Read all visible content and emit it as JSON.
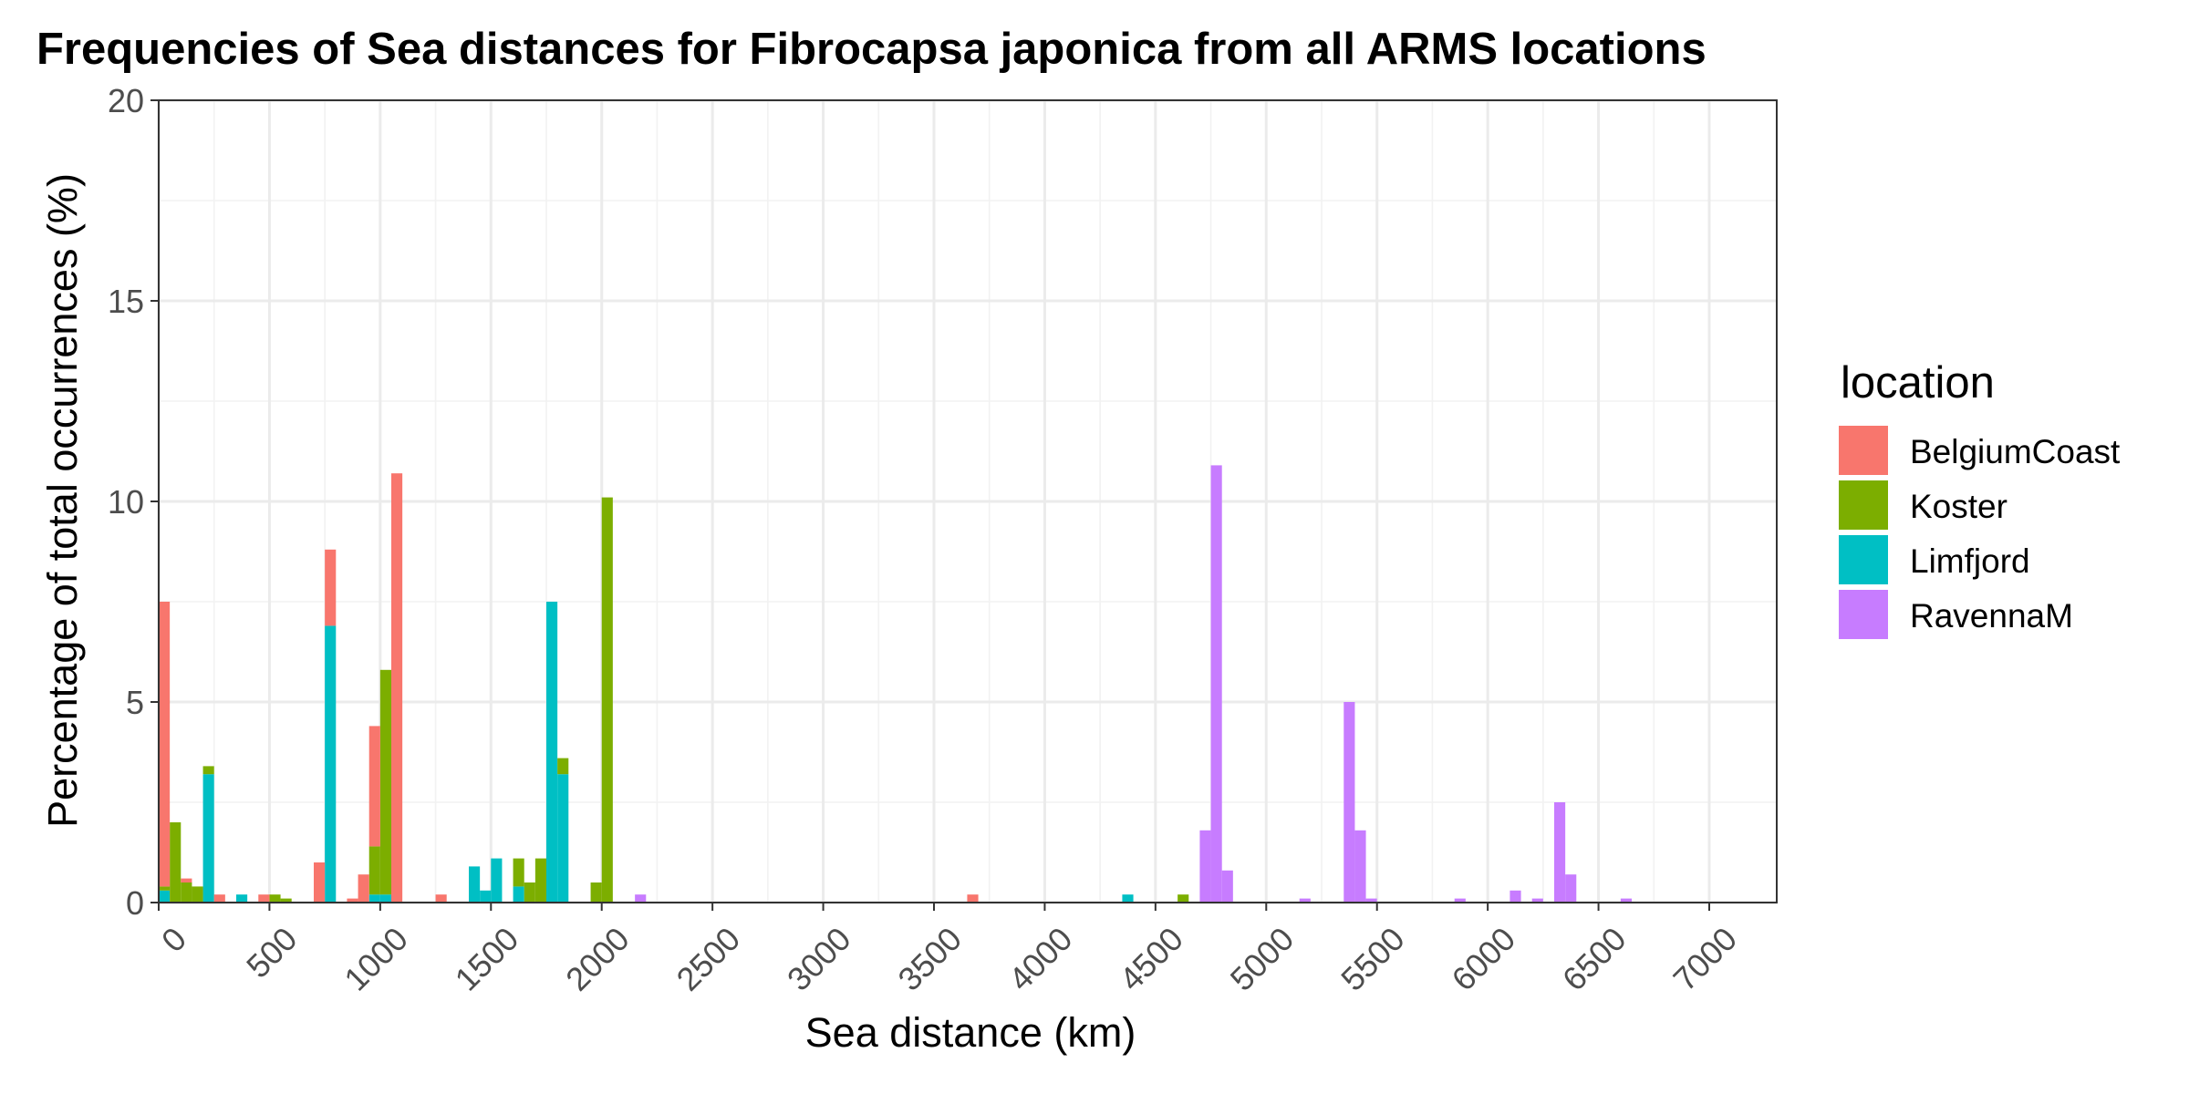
{
  "chart_data": {
    "type": "bar",
    "stacked": true,
    "title": "Frequencies of Sea distances for Fibrocapsa japonica from all ARMS locations",
    "xlabel": "Sea distance (km)",
    "ylabel": "Percentage of total occurrences (%)",
    "xlim": [
      0,
      7200
    ],
    "ylim": [
      0,
      20
    ],
    "bin_width": 50,
    "x_ticks": [
      0,
      500,
      1000,
      1500,
      2000,
      2500,
      3000,
      3500,
      4000,
      4500,
      5000,
      5500,
      6000,
      6500,
      7000
    ],
    "x_tick_labels": [
      "0",
      "500",
      "1000",
      "1500",
      "2000",
      "2500",
      "3000",
      "3500",
      "4000",
      "4500",
      "5000",
      "5500",
      "6000",
      "6500",
      "7000"
    ],
    "y_ticks": [
      0,
      5,
      10,
      15,
      20
    ],
    "y_tick_labels": [
      "0",
      "5",
      "10",
      "15",
      "20"
    ],
    "grid": true,
    "legend": {
      "title": "location",
      "position": "right"
    },
    "series": [
      {
        "name": "BelgiumCoast",
        "color": "#F8766D",
        "bins": [
          {
            "x": 0,
            "y": 7.1
          },
          {
            "x": 100,
            "y": 0.1
          },
          {
            "x": 250,
            "y": 0.2
          },
          {
            "x": 450,
            "y": 0.2
          },
          {
            "x": 700,
            "y": 1.0
          },
          {
            "x": 750,
            "y": 1.9
          },
          {
            "x": 850,
            "y": 0.1
          },
          {
            "x": 900,
            "y": 0.7
          },
          {
            "x": 950,
            "y": 3.0
          },
          {
            "x": 1050,
            "y": 10.7
          },
          {
            "x": 1250,
            "y": 0.2
          },
          {
            "x": 3650,
            "y": 0.2
          }
        ]
      },
      {
        "name": "Koster",
        "color": "#7CAE00",
        "bins": [
          {
            "x": 0,
            "y": 0.1
          },
          {
            "x": 50,
            "y": 2.0
          },
          {
            "x": 100,
            "y": 0.5
          },
          {
            "x": 150,
            "y": 0.4
          },
          {
            "x": 200,
            "y": 0.2
          },
          {
            "x": 500,
            "y": 0.2
          },
          {
            "x": 550,
            "y": 0.1
          },
          {
            "x": 950,
            "y": 1.2
          },
          {
            "x": 1000,
            "y": 5.6
          },
          {
            "x": 1600,
            "y": 0.7
          },
          {
            "x": 1650,
            "y": 0.5
          },
          {
            "x": 1700,
            "y": 1.1
          },
          {
            "x": 1800,
            "y": 0.4
          },
          {
            "x": 1950,
            "y": 0.5
          },
          {
            "x": 2000,
            "y": 10.1
          },
          {
            "x": 4600,
            "y": 0.2
          }
        ]
      },
      {
        "name": "Limfjord",
        "color": "#00BFC4",
        "bins": [
          {
            "x": 0,
            "y": 0.3
          },
          {
            "x": 200,
            "y": 3.2
          },
          {
            "x": 350,
            "y": 0.2
          },
          {
            "x": 750,
            "y": 6.9
          },
          {
            "x": 950,
            "y": 0.2
          },
          {
            "x": 1000,
            "y": 0.2
          },
          {
            "x": 1400,
            "y": 0.9
          },
          {
            "x": 1450,
            "y": 0.3
          },
          {
            "x": 1500,
            "y": 1.1
          },
          {
            "x": 1600,
            "y": 0.4
          },
          {
            "x": 1750,
            "y": 7.5
          },
          {
            "x": 1800,
            "y": 3.2
          },
          {
            "x": 4350,
            "y": 0.2
          }
        ]
      },
      {
        "name": "RavennaM",
        "color": "#C77CFF",
        "bins": [
          {
            "x": 2150,
            "y": 0.2
          },
          {
            "x": 4700,
            "y": 1.8
          },
          {
            "x": 4750,
            "y": 10.9
          },
          {
            "x": 4800,
            "y": 0.8
          },
          {
            "x": 5150,
            "y": 0.1
          },
          {
            "x": 5350,
            "y": 5.0
          },
          {
            "x": 5400,
            "y": 1.8
          },
          {
            "x": 5450,
            "y": 0.1
          },
          {
            "x": 5850,
            "y": 0.1
          },
          {
            "x": 6100,
            "y": 0.3
          },
          {
            "x": 6200,
            "y": 0.1
          },
          {
            "x": 6300,
            "y": 2.5
          },
          {
            "x": 6350,
            "y": 0.7
          },
          {
            "x": 6600,
            "y": 0.1
          }
        ]
      }
    ]
  }
}
